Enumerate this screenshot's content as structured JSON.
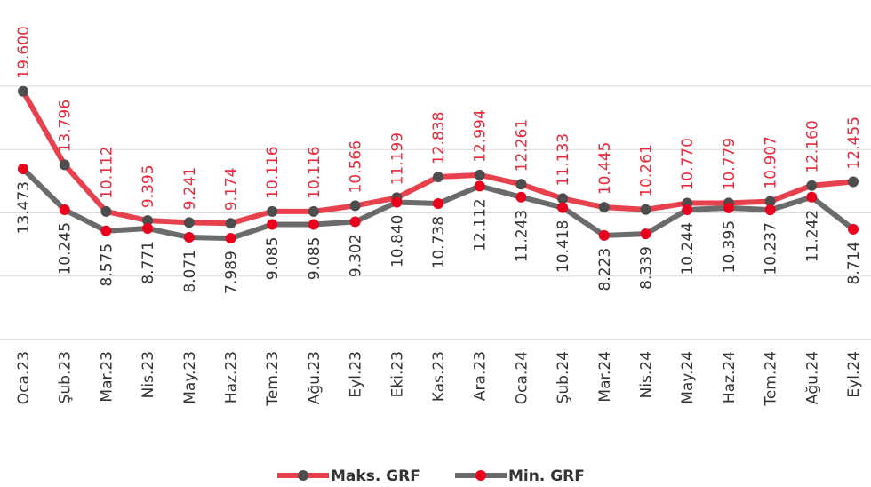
{
  "chart_data": {
    "type": "line",
    "categories": [
      "Oca.23",
      "Şub.23",
      "Mar.23",
      "Nis.23",
      "May.23",
      "Haz.23",
      "Tem.23",
      "Ağu.23",
      "Eyl.23",
      "Eki.23",
      "Kas.23",
      "Ara.23",
      "Oca.24",
      "Şub.24",
      "Mar.24",
      "Nis.24",
      "May.24",
      "Haz.24",
      "Tem.24",
      "Ağu.24",
      "Eyl.24"
    ],
    "series": [
      {
        "name": "Maks. GRF",
        "color": "#e8414e",
        "marker_color": "#4d4d4d",
        "label_color": "#e8283c",
        "values": [
          19600,
          13796,
          10112,
          9395,
          9241,
          9174,
          10116,
          10116,
          10566,
          11199,
          12838,
          12994,
          12261,
          11133,
          10445,
          10261,
          10770,
          10779,
          10907,
          12160,
          12455
        ],
        "value_labels": [
          "19.600",
          "13.796",
          "10.112",
          "9.395",
          "9.241",
          "9.174",
          "10.116",
          "10.116",
          "10.566",
          "11.199",
          "12.838",
          "12.994",
          "12.261",
          "11.133",
          "10.445",
          "10.261",
          "10.770",
          "10.779",
          "10.907",
          "12.160",
          "12.455"
        ]
      },
      {
        "name": "Min. GRF",
        "color": "#6b6b6b",
        "marker_color": "#e8001c",
        "label_color": "#333333",
        "values": [
          13473,
          10245,
          8575,
          8771,
          8071,
          7989,
          9085,
          9085,
          9302,
          10840,
          10738,
          12112,
          11243,
          10418,
          8223,
          8339,
          10244,
          10395,
          10237,
          11242,
          8714
        ],
        "value_labels": [
          "13.473",
          "10.245",
          "8.575",
          "8.771",
          "8.071",
          "7.989",
          "9.085",
          "9.085",
          "9.302",
          "10.840",
          "10.738",
          "12.112",
          "11.243",
          "10.418",
          "8.223",
          "8.339",
          "10.244",
          "10.395",
          "10.237",
          "11.242",
          "8.714"
        ]
      }
    ],
    "ylim": [
      0,
      20000
    ],
    "yticks": [
      0,
      5000,
      10000,
      15000,
      20000
    ],
    "grid": true
  }
}
